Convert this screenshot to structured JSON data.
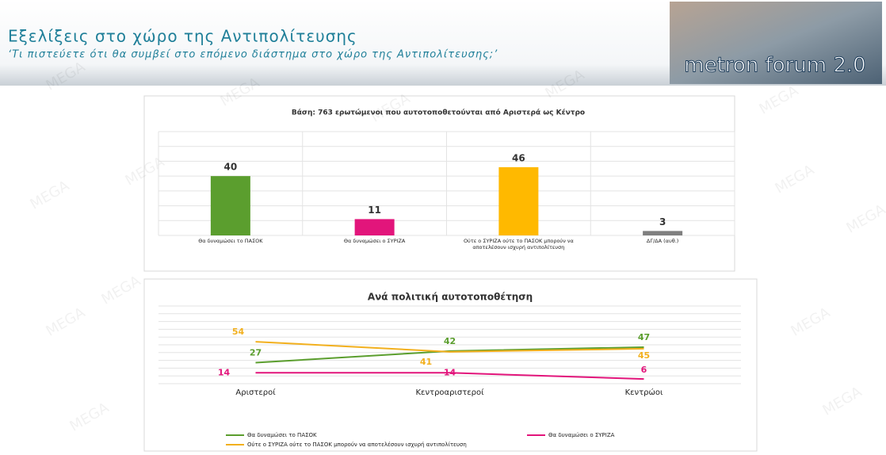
{
  "header": {
    "title": "Εξελίξεις στο χώρο της Αντιπολίτευσης",
    "subtitle": "‘Τι πιστεύετε ότι θα συμβεί στο επόμενο διάστημα στο χώρο της Αντιπολίτευσης;’",
    "logo": "metron forum 2.0",
    "watermark": "MEGA"
  },
  "chart_data": [
    {
      "type": "bar",
      "title": "Βάση: 763 ερωτώμενοι που αυτοτοποθετούνται από Αριστερά ως Κέντρο",
      "categories": [
        "Θα δυναμώσει το ΠΑΣΟΚ",
        "Θα δυναμώσει ο ΣΥΡΙΖΑ",
        "Ούτε ο ΣΥΡΙΖΑ ούτε το ΠΑΣΟΚ μπορούν να αποτελέσουν ισχυρή αντιπολίτευση",
        "ΔΓ/ΔΑ (αυθ.)"
      ],
      "values": [
        40,
        11,
        46,
        3
      ],
      "colors": [
        "#5b9e2e",
        "#e2157b",
        "#ffb900",
        "#7f7f7f"
      ],
      "ylim": [
        0,
        70
      ],
      "yticks": [
        0,
        10,
        20,
        30,
        40,
        50,
        60,
        70
      ],
      "grid": true
    },
    {
      "type": "line",
      "title": "Ανά πολιτική αυτοτοποθέτηση",
      "categories": [
        "Αριστεροί",
        "Κεντροαριστεροί",
        "Κεντρώοι"
      ],
      "series": [
        {
          "name": "Θα δυναμώσει το ΠΑΣΟΚ",
          "color": "#5b9e2e",
          "values": [
            27,
            42,
            47
          ]
        },
        {
          "name": "Θα δυναμώσει ο ΣΥΡΙΖΑ",
          "color": "#e2157b",
          "values": [
            14,
            14,
            6
          ]
        },
        {
          "name": "Ούτε ο ΣΥΡΙΖΑ ούτε το ΠΑΣΟΚ μπορούν να αποτελέσουν ισχυρή αντιπολίτευση",
          "color": "#f2b01e",
          "values": [
            54,
            41,
            45
          ]
        }
      ],
      "ylim": [
        0,
        100
      ],
      "yticks": [
        0,
        10,
        20,
        30,
        40,
        50,
        60,
        70,
        80,
        90,
        100
      ],
      "grid": true
    }
  ]
}
